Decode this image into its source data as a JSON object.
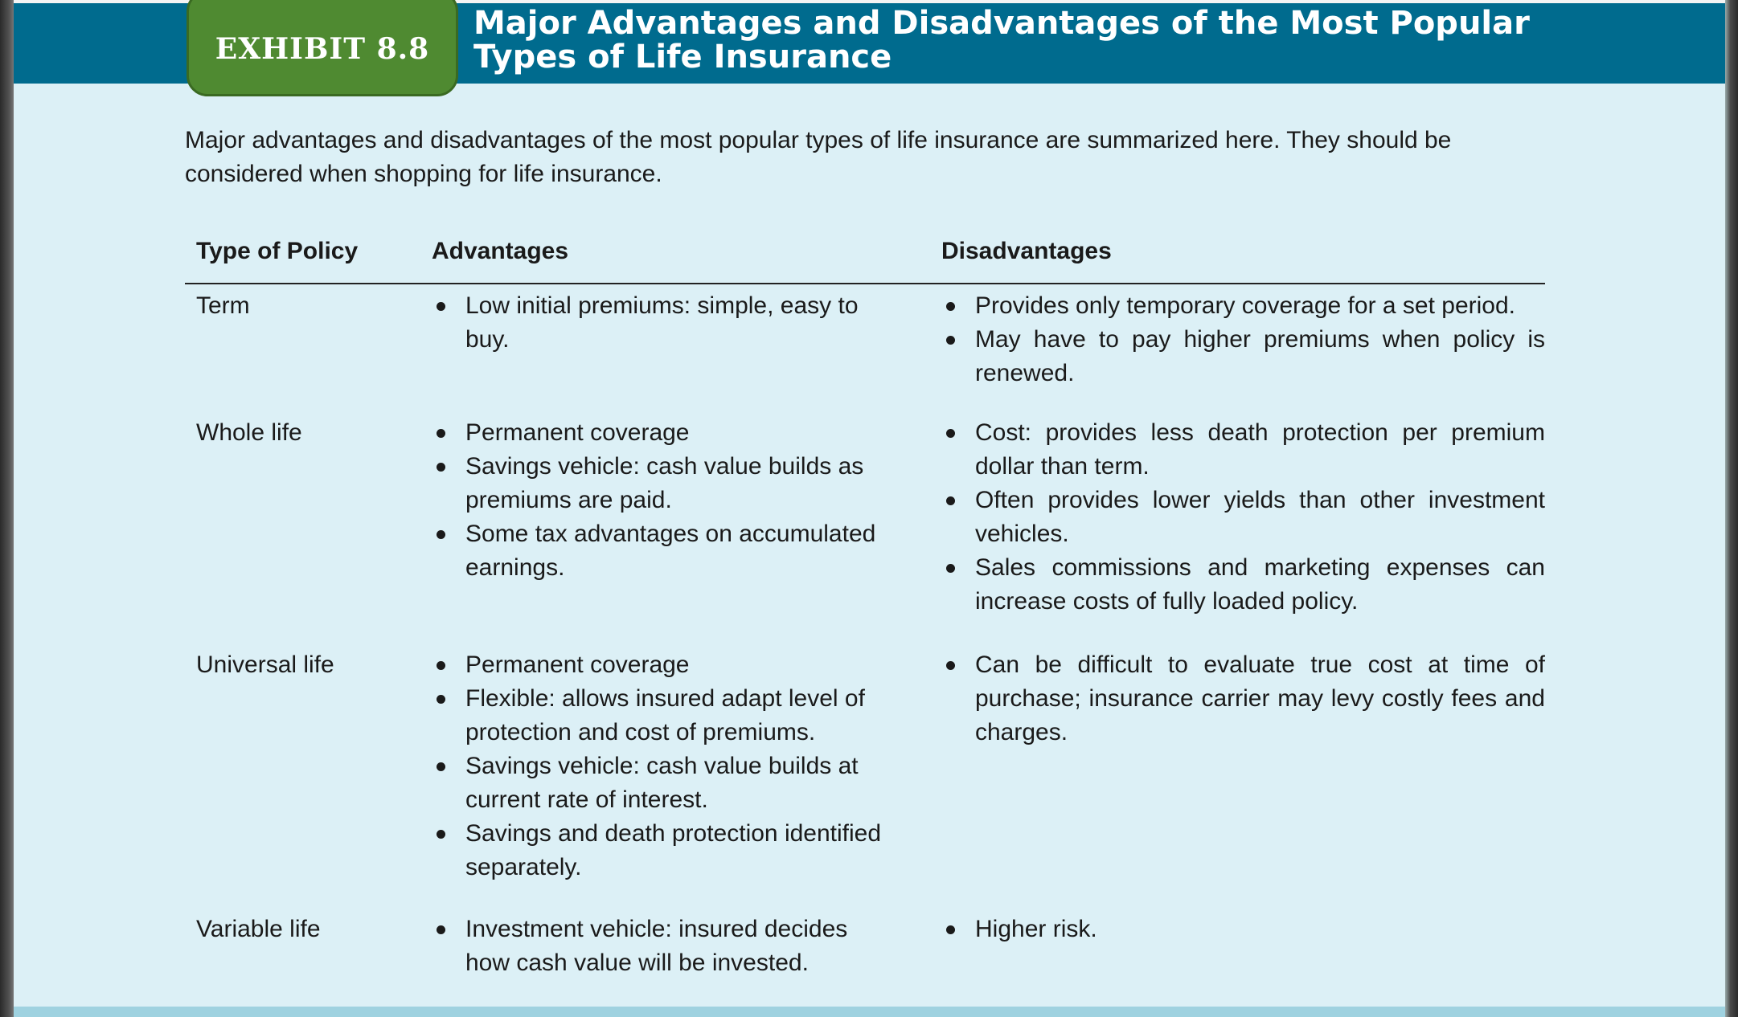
{
  "exhibit": {
    "label": "EXHIBIT 8.8",
    "title": "Major Advantages and Disadvantages of the Most Popular Types of Life Insurance"
  },
  "intro": "Major advantages and disadvantages of the most popular types of life insurance are summarized here. They should be considered when shopping for life insurance.",
  "table": {
    "headers": {
      "type": "Type of Policy",
      "advantages": "Advantages",
      "disadvantages": "Disadvantages"
    },
    "rows": [
      {
        "type": "Term",
        "advantages": [
          "Low initial premiums: simple, easy to buy."
        ],
        "disadvantages": [
          "Provides only temporary coverage for a set period.",
          "May have to pay higher premiums when policy is renewed."
        ]
      },
      {
        "type": "Whole life",
        "advantages": [
          "Permanent coverage",
          "Savings vehicle: cash value builds as premiums are paid.",
          "Some tax advantages on accumulated earnings."
        ],
        "disadvantages": [
          "Cost: provides less death protection per premium dollar than term.",
          "Often provides lower yields than other investment vehicles.",
          "Sales commissions and marketing expenses can increase costs of fully loaded policy."
        ]
      },
      {
        "type": "Universal life",
        "advantages": [
          "Permanent coverage",
          "Flexible: allows insured adapt level of protection and cost of premiums.",
          "Savings vehicle: cash value builds at current rate of interest.",
          "Savings and death protection identified separately."
        ],
        "disadvantages": [
          "Can be difficult to evaluate true cost at time of purchase; insurance carrier may levy costly fees and charges."
        ]
      },
      {
        "type": "Variable life",
        "advantages": [
          "Investment vehicle: insured decides how cash value will be invested."
        ],
        "disadvantages": [
          "Higher risk."
        ]
      }
    ]
  },
  "colors": {
    "header_band": "#006b8e",
    "exhibit_tab": "#4f8a31",
    "page_background": "#dcf0f6"
  }
}
